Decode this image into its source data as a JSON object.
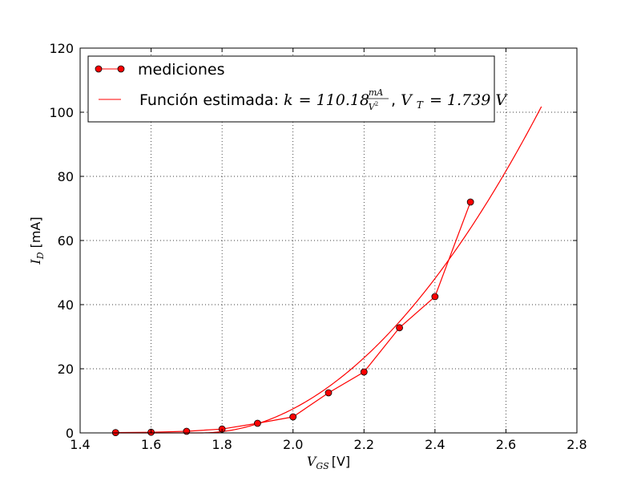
{
  "chart_data": {
    "type": "line",
    "xlim": [
      1.4,
      2.8
    ],
    "ylim": [
      0,
      120
    ],
    "grid": true,
    "legend_position": "top-left",
    "colors": {
      "series": "#ff0000",
      "marker_fill": "#ff0000",
      "marker_edge": "#000000"
    },
    "xticks": [
      "1.4",
      "1.6",
      "1.8",
      "2.0",
      "2.2",
      "2.4",
      "2.6",
      "2.8"
    ],
    "yticks": [
      "0",
      "20",
      "40",
      "60",
      "80",
      "100",
      "120"
    ],
    "xlabel": {
      "symbol": "V",
      "subscript": "GS",
      "unit": "[V]"
    },
    "ylabel": {
      "symbol": "I",
      "subscript": "D",
      "unit": "[mA]"
    },
    "series": [
      {
        "name": "mediciones",
        "style": "line-markers",
        "x": [
          1.5,
          1.6,
          1.7,
          1.8,
          1.9,
          2.0,
          2.1,
          2.2,
          2.3,
          2.4,
          2.5
        ],
        "y": [
          0.1,
          0.2,
          0.5,
          1.2,
          3.0,
          5.0,
          12.5,
          19.0,
          32.8,
          42.5,
          72.0
        ]
      },
      {
        "name_prefix": "Función estimada: ",
        "name_math": {
          "k_symbol": "k",
          "k_value": "110.18",
          "k_unit_num": "mA",
          "k_unit_den": "V",
          "k_unit_den_exp": "2",
          "sep": ", ",
          "vt_symbol": "V",
          "vt_subscript": "T",
          "vt_value": "1.739",
          "vt_unit": "V"
        },
        "style": "line",
        "formula": {
          "k": 110.18,
          "vt": 1.739
        },
        "x_range": [
          1.5,
          2.7
        ]
      }
    ]
  }
}
